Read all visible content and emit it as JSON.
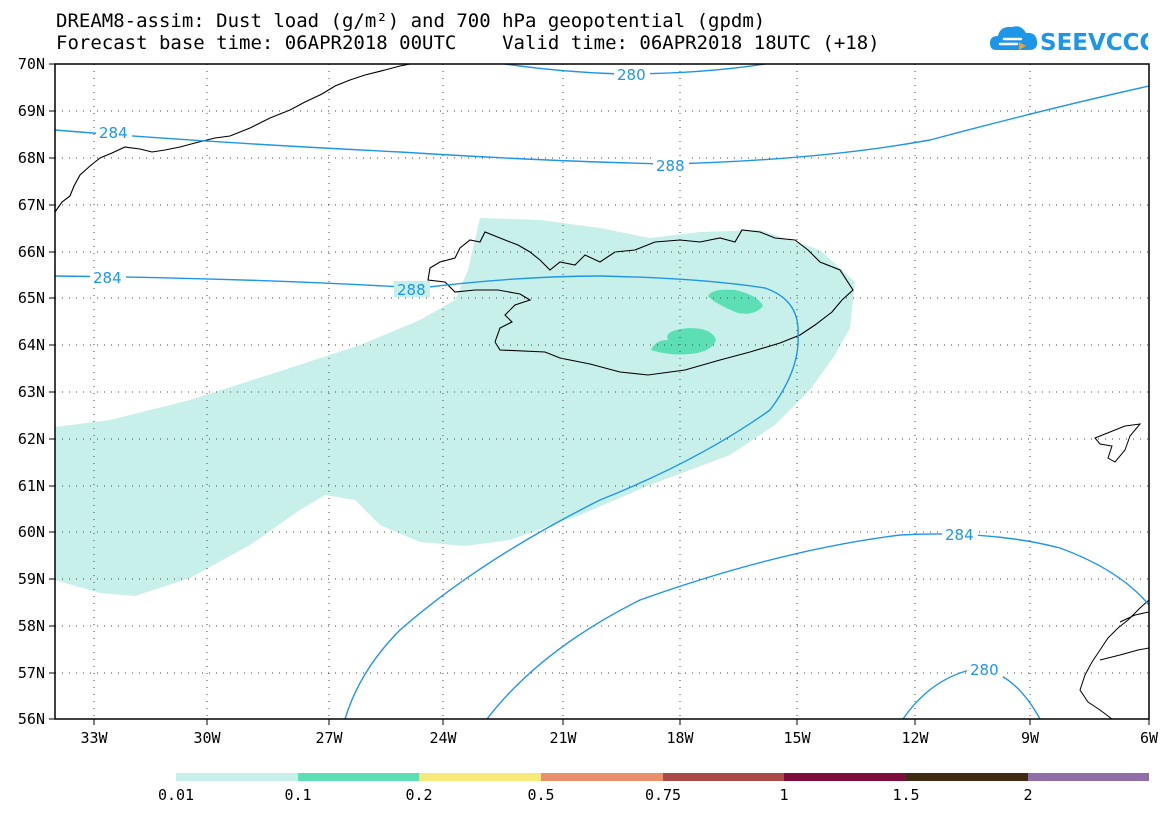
{
  "title_line1": "DREAM8-assim: Dust load (g/m²) and 700 hPa geopotential (gpdm)",
  "title_line2": "Forecast base time: 06APR2018 00UTC    Valid time: 06APR2018 18UTC (+18)",
  "logo_text": "SEEVCCC",
  "lat_labels": [
    "70N",
    "69N",
    "68N",
    "67N",
    "66N",
    "65N",
    "64N",
    "63N",
    "62N",
    "61N",
    "60N",
    "59N",
    "58N",
    "57N",
    "56N"
  ],
  "lon_labels": [
    "33W",
    "30W",
    "27W",
    "24W",
    "21W",
    "18W",
    "15W",
    "12W",
    "9W",
    "6W"
  ],
  "contour_labels": [
    "280",
    "284",
    "288",
    "284",
    "288",
    "284",
    "280"
  ],
  "colorbar": {
    "ticks": [
      "0.01",
      "0.1",
      "0.2",
      "0.5",
      "0.75",
      "1",
      "1.5",
      "2"
    ],
    "colors": [
      "#c7f0ea",
      "#5cdfb4",
      "#f7e97a",
      "#e8906b",
      "#a84a46",
      "#7f0c3a",
      "#3f2a14",
      "#8f6fa6"
    ]
  },
  "colors": {
    "contour": "#1e96e8",
    "dust_low": "#c7f0ea",
    "dust_mid": "#5cdfb4"
  }
}
